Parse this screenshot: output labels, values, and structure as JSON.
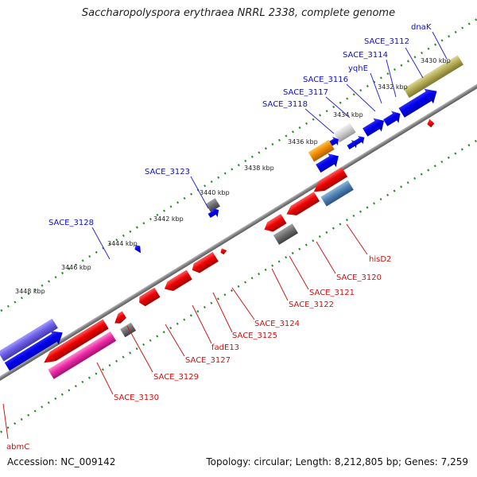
{
  "title": "Saccharopolyspora erythraea NRRL 2338, complete genome",
  "footer": {
    "accession": "Accession: NC_009142",
    "topology": "Topology: circular; Length: 8,212,805 bp; Genes: 7,259"
  },
  "colors": {
    "label_top": "#1010c0",
    "label_bottom": "#cc1111",
    "backbone": "#7f7f7f",
    "tick": "#2a8a2a"
  },
  "ticks": [
    "3430 kbp",
    "3432 kbp",
    "3434 kbp",
    "3436 kbp",
    "3438 kbp",
    "3440 kbp",
    "3442 kbp",
    "3444 kbp",
    "3446 kbp",
    "3448 kbp"
  ],
  "gene_labels_top": [
    "dnaK",
    "SACE_3112",
    "SACE_3114",
    "yqhE",
    "SACE_3116",
    "SACE_3117",
    "SACE_3118",
    "SACE_3123",
    "SACE_3128"
  ],
  "gene_labels_bottom": [
    "hisD2",
    "SACE_3120",
    "SACE_3121",
    "SACE_3122",
    "SACE_3124",
    "SACE_3125",
    "fadE13",
    "SACE_3127",
    "SACE_3129",
    "SACE_3130",
    "abmC"
  ]
}
